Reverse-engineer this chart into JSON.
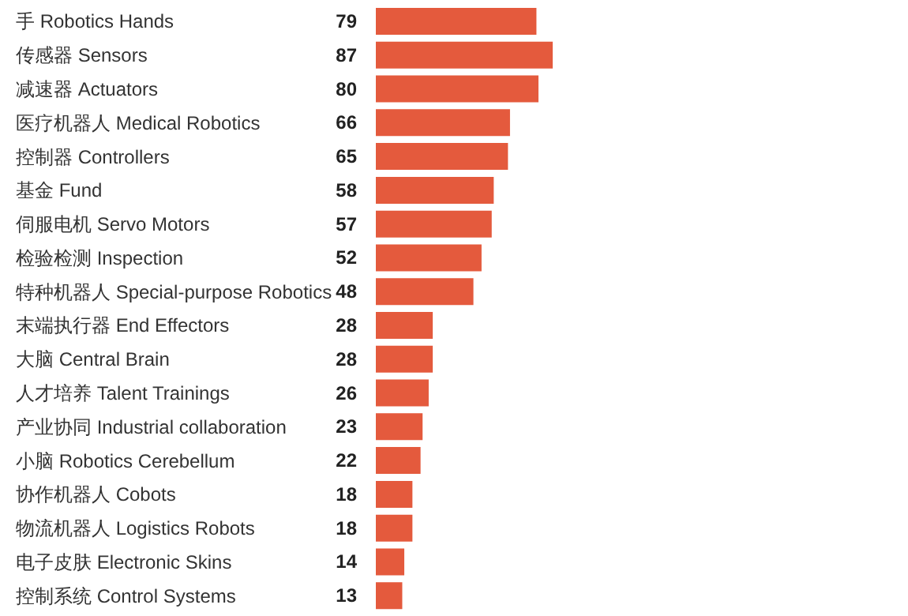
{
  "chart_data": {
    "type": "bar",
    "orientation": "horizontal",
    "data_labels": true,
    "color": "#e45a3d",
    "categories": [
      "手 Robotics Hands",
      "传感器 Sensors",
      "减速器 Actuators",
      "医疗机器人 Medical Robotics",
      "控制器 Controllers",
      "基金 Fund",
      "伺服电机 Servo Motors",
      "检验检测 Inspection",
      "特种机器人 Special-purpose Robotics",
      "末端执行器 End Effectors",
      "大脑 Central Brain",
      "人才培养 Talent Trainings",
      "产业协同 Industrial collaboration",
      "小脑 Robotics Cerebellum",
      "协作机器人 Cobots",
      "物流机器人 Logistics Robots",
      "电子皮肤 Electronic Skins",
      "控制系统 Control Systems"
    ],
    "values": [
      79,
      87,
      80,
      66,
      65,
      58,
      57,
      52,
      48,
      28,
      28,
      26,
      23,
      22,
      18,
      18,
      14,
      13
    ]
  }
}
